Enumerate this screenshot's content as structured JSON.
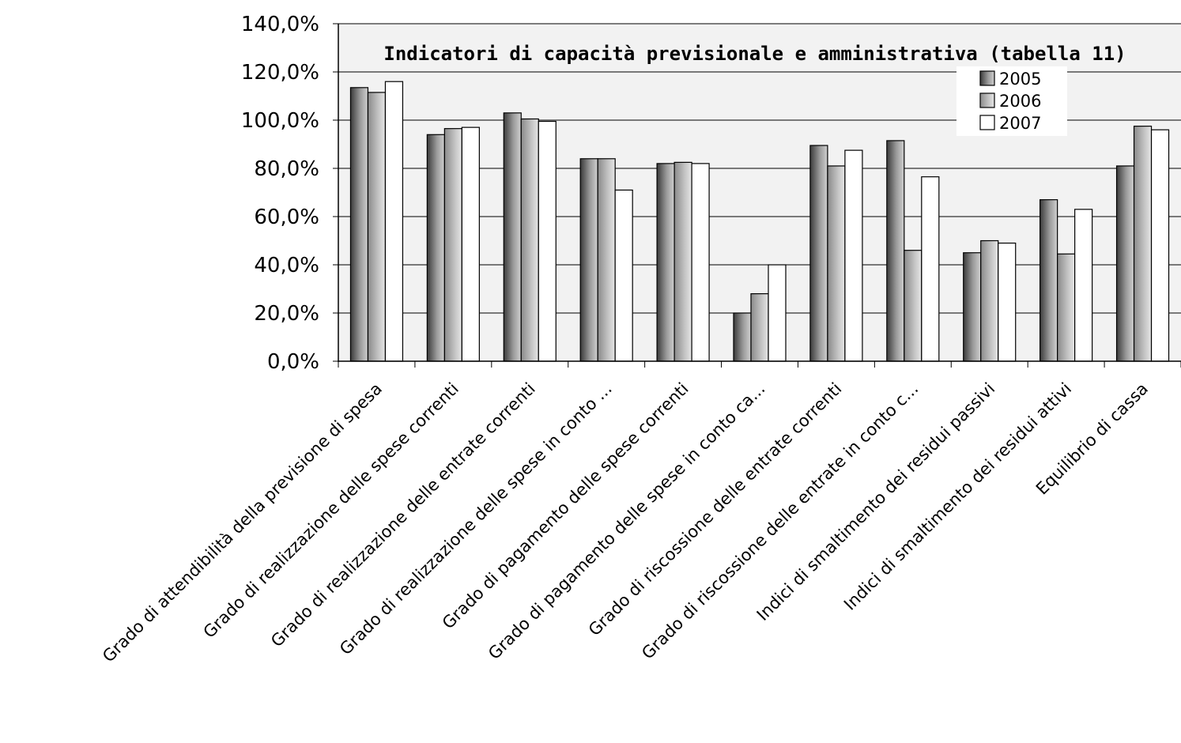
{
  "chart_data": {
    "type": "bar",
    "title": "Indicatori di capacità previsionale e amministrativa (tabella 11)",
    "categories": [
      "Grado di attendibilità della previsione di spesa",
      "Grado di realizzazione delle spese correnti",
      "Grado di realizzazione delle entrate correnti",
      "Grado di realizzazione delle spese in conto ...",
      "Grado di pagamento delle spese correnti",
      "Grado di pagamento delle spese in conto ca...",
      "Grado di riscossione delle entrate correnti",
      "Grado di riscossione delle entrate in conto c...",
      "Indici di smaltimento dei residui passivi",
      "Indici di smaltimento dei residui attivi",
      "Equilibrio di cassa"
    ],
    "series": [
      {
        "name": "2005",
        "values": [
          113.5,
          94.0,
          103.0,
          84.0,
          82.0,
          20.0,
          89.5,
          91.5,
          45.0,
          67.0,
          81.0
        ]
      },
      {
        "name": "2006",
        "values": [
          111.5,
          96.5,
          100.5,
          84.0,
          82.5,
          28.0,
          81.0,
          46.0,
          50.0,
          44.5,
          97.5
        ]
      },
      {
        "name": "2007",
        "values": [
          116.0,
          97.0,
          99.5,
          71.0,
          82.0,
          40.0,
          87.5,
          76.5,
          49.0,
          63.0,
          96.0
        ]
      }
    ],
    "y_ticks": [
      "0,0%",
      "20,0%",
      "40,0%",
      "60,0%",
      "80,0%",
      "100,0%",
      "120,0%",
      "140,0%"
    ],
    "ylim": [
      0,
      140
    ],
    "xlabel": "",
    "ylabel": "",
    "grid": true,
    "legend_position": "top-right",
    "series_fills": [
      "gradient-dark",
      "gradient-mid",
      "#ffffff"
    ]
  }
}
